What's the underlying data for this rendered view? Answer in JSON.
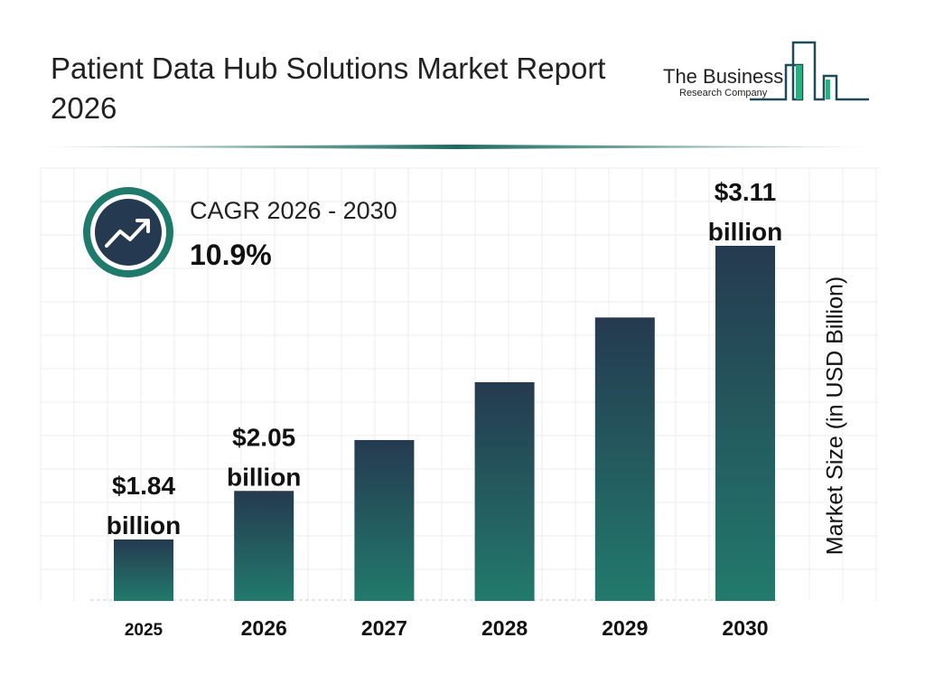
{
  "header": {
    "title": "Patient Data Hub Solutions Market Report 2026",
    "logo_text": "The Business Research Company"
  },
  "cagr": {
    "label": "CAGR 2026 - 2030",
    "value": "10.9%",
    "icon": "trend-up-icon"
  },
  "colors": {
    "bar_top": "#253a50",
    "bar_bottom": "#227a6c",
    "accent": "#1e7a6a",
    "logo_green": "#23b47e",
    "logo_navy": "#1f4a5a"
  },
  "chart_data": {
    "type": "bar",
    "categories": [
      "2025",
      "2026",
      "2027",
      "2028",
      "2029",
      "2030"
    ],
    "values": [
      1.84,
      2.05,
      2.27,
      2.52,
      2.8,
      3.11
    ],
    "data_labels": [
      "$1.84 billion",
      "$2.05 billion",
      "",
      "",
      "",
      "$3.11 billion"
    ],
    "ylabel": "Market Size (in USD Billion)",
    "grid": true
  }
}
